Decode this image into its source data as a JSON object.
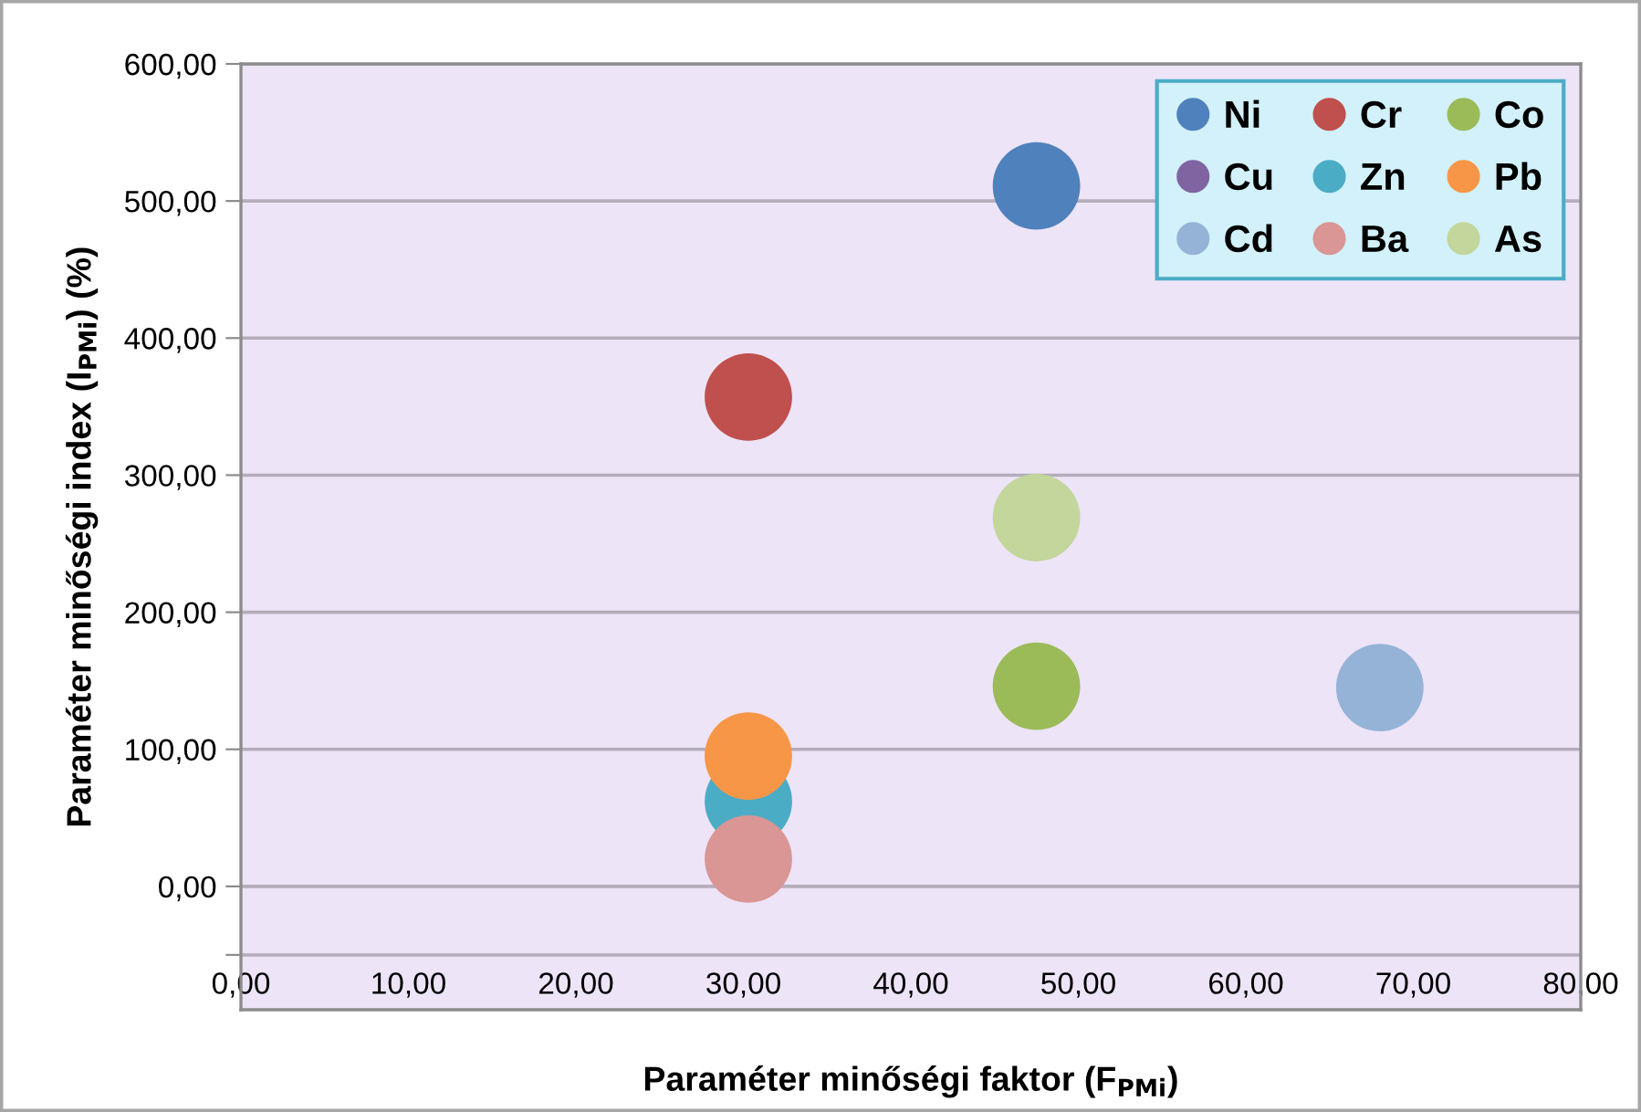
{
  "chart_data": {
    "type": "bubble",
    "xlabel": "Paraméter minőségi faktor (F$_{PMi}$)",
    "ylabel": "Paraméter minőségi index (I$_{PMi}$) (%)",
    "xlim": [
      0,
      80
    ],
    "xticks": [
      {
        "value": 0,
        "label": "0,00"
      },
      {
        "value": 10,
        "label": "10,00"
      },
      {
        "value": 20,
        "label": "20,00"
      },
      {
        "value": 30,
        "label": "30,00"
      },
      {
        "value": 40,
        "label": "40,00"
      },
      {
        "value": 50,
        "label": "50,00"
      },
      {
        "value": 60,
        "label": "60,00"
      },
      {
        "value": 70,
        "label": "70,00"
      },
      {
        "value": 80,
        "label": "80,00"
      }
    ],
    "ylim": [
      -90,
      600
    ],
    "yticks": [
      {
        "value": -50,
        "label": null
      },
      {
        "value": 0,
        "label": "0,00"
      },
      {
        "value": 100,
        "label": "100,00"
      },
      {
        "value": 200,
        "label": "200,00"
      },
      {
        "value": 300,
        "label": "300,00"
      },
      {
        "value": 400,
        "label": "400,00"
      },
      {
        "value": 500,
        "label": "500,00"
      },
      {
        "value": 600,
        "label": "600,00"
      }
    ],
    "grid": "y",
    "legend": "top right",
    "series": [
      {
        "name": "Ni",
        "color": "#4f81bd",
        "x": [
          47.5
        ],
        "values": [
          511
        ],
        "sizes": [
          1
        ]
      },
      {
        "name": "Cr",
        "color": "#c0504d",
        "x": [
          30.3
        ],
        "values": [
          357
        ],
        "sizes": [
          1
        ]
      },
      {
        "name": "Co",
        "color": "#9bbb59",
        "x": [
          47.5
        ],
        "values": [
          146
        ],
        "sizes": [
          1
        ]
      },
      {
        "name": "Cu",
        "color": "#8064a2",
        "x": [
          null
        ],
        "values": [
          null
        ],
        "sizes": [
          null
        ]
      },
      {
        "name": "Zn",
        "color": "#4bacc6",
        "x": [
          30.3
        ],
        "values": [
          62
        ],
        "sizes": [
          1
        ]
      },
      {
        "name": "Pb",
        "color": "#f79646",
        "x": [
          30.3
        ],
        "values": [
          95
        ],
        "sizes": [
          1
        ]
      },
      {
        "name": "Cd",
        "color": "#95b3d7",
        "x": [
          68
        ],
        "values": [
          145
        ],
        "sizes": [
          1
        ]
      },
      {
        "name": "Ba",
        "color": "#d99694",
        "x": [
          30.3
        ],
        "values": [
          20
        ],
        "sizes": [
          1
        ]
      },
      {
        "name": "As",
        "color": "#c3d69b",
        "x": [
          47.5
        ],
        "values": [
          269
        ],
        "sizes": [
          1
        ]
      }
    ]
  }
}
